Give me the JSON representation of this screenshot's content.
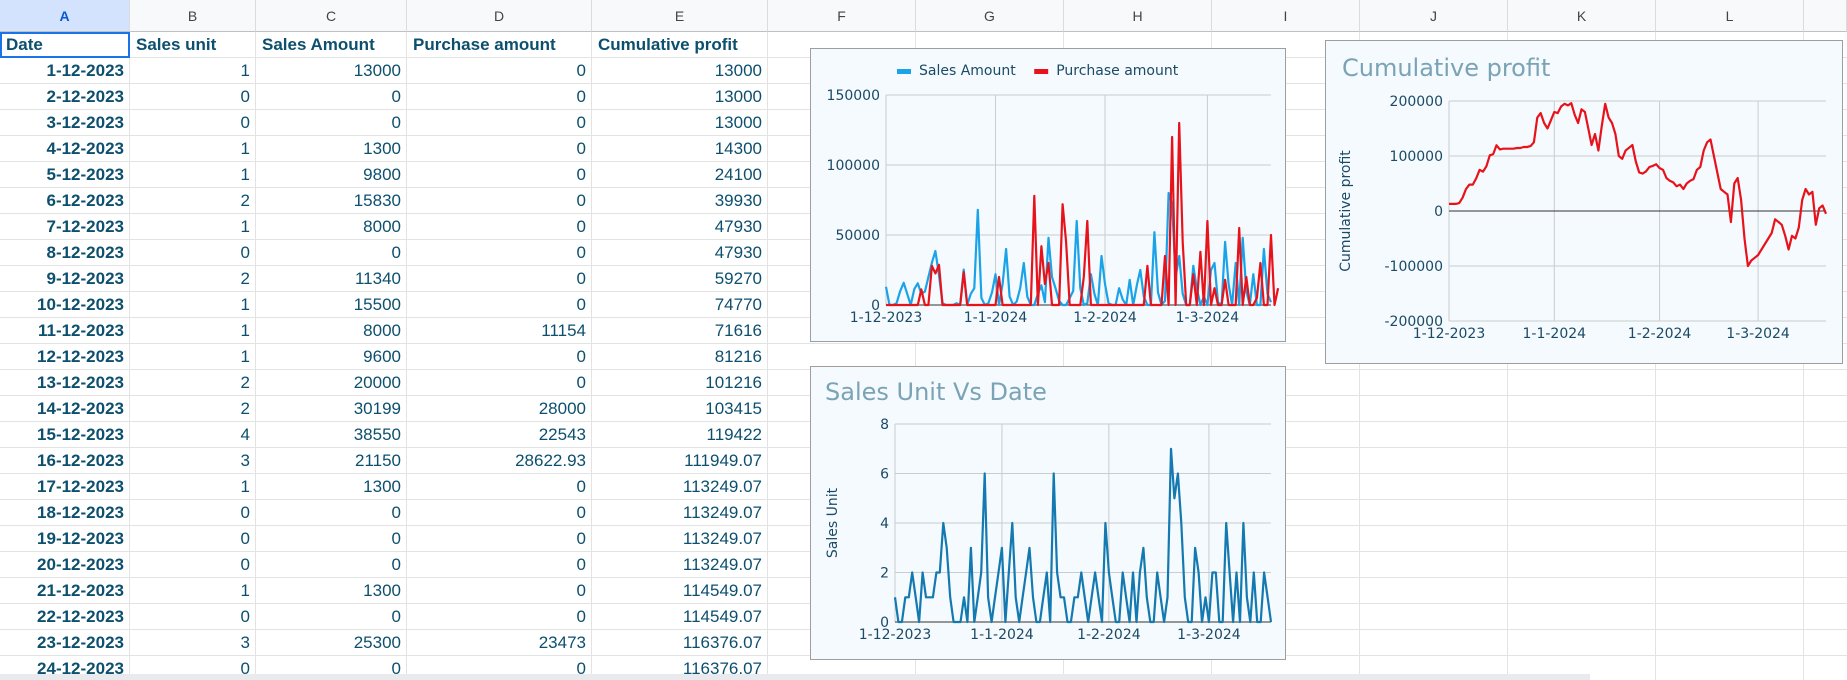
{
  "columns": [
    "A",
    "B",
    "C",
    "D",
    "E",
    "F",
    "G",
    "H",
    "I",
    "J",
    "K",
    "L"
  ],
  "selected_column": "A",
  "headers": [
    "Date",
    "Sales unit",
    "Sales Amount",
    "Purchase amount",
    "Cumulative profit"
  ],
  "rows": [
    [
      "1-12-2023",
      "1",
      "13000",
      "0",
      "13000"
    ],
    [
      "2-12-2023",
      "0",
      "0",
      "0",
      "13000"
    ],
    [
      "3-12-2023",
      "0",
      "0",
      "0",
      "13000"
    ],
    [
      "4-12-2023",
      "1",
      "1300",
      "0",
      "14300"
    ],
    [
      "5-12-2023",
      "1",
      "9800",
      "0",
      "24100"
    ],
    [
      "6-12-2023",
      "2",
      "15830",
      "0",
      "39930"
    ],
    [
      "7-12-2023",
      "1",
      "8000",
      "0",
      "47930"
    ],
    [
      "8-12-2023",
      "0",
      "0",
      "0",
      "47930"
    ],
    [
      "9-12-2023",
      "2",
      "11340",
      "0",
      "59270"
    ],
    [
      "10-12-2023",
      "1",
      "15500",
      "0",
      "74770"
    ],
    [
      "11-12-2023",
      "1",
      "8000",
      "11154",
      "71616"
    ],
    [
      "12-12-2023",
      "1",
      "9600",
      "0",
      "81216"
    ],
    [
      "13-12-2023",
      "2",
      "20000",
      "0",
      "101216"
    ],
    [
      "14-12-2023",
      "2",
      "30199",
      "28000",
      "103415"
    ],
    [
      "15-12-2023",
      "4",
      "38550",
      "22543",
      "119422"
    ],
    [
      "16-12-2023",
      "3",
      "21150",
      "28622.93",
      "111949.07"
    ],
    [
      "17-12-2023",
      "1",
      "1300",
      "0",
      "113249.07"
    ],
    [
      "18-12-2023",
      "0",
      "0",
      "0",
      "113249.07"
    ],
    [
      "19-12-2023",
      "0",
      "0",
      "0",
      "113249.07"
    ],
    [
      "20-12-2023",
      "0",
      "0",
      "0",
      "113249.07"
    ],
    [
      "21-12-2023",
      "1",
      "1300",
      "0",
      "114549.07"
    ],
    [
      "22-12-2023",
      "0",
      "0",
      "0",
      "114549.07"
    ],
    [
      "23-12-2023",
      "3",
      "25300",
      "23473",
      "116376.07"
    ],
    [
      "24-12-2023",
      "0",
      "0",
      "0",
      "116376.07"
    ]
  ],
  "colors": {
    "sales_amount": "#1aa3e8",
    "purchase_amount": "#e8121b",
    "cumulative_profit": "#e8121b",
    "sales_unit": "#1479b0",
    "text": "#0c4f6e",
    "chart_title": "#7aa3b6"
  },
  "chart_data": [
    {
      "type": "line",
      "title": "",
      "legend_position": "top",
      "x_ticks": [
        "1-12-2023",
        "1-1-2024",
        "1-2-2024",
        "1-3-2024"
      ],
      "ylim": [
        0,
        150000
      ],
      "y_ticks": [
        "0",
        "50000",
        "100000",
        "150000"
      ],
      "grid": true,
      "series": [
        {
          "name": "Sales Amount",
          "values": [
            13000,
            0,
            0,
            1300,
            9800,
            15830,
            8000,
            0,
            11340,
            15500,
            8000,
            9600,
            20000,
            30199,
            38550,
            21150,
            1300,
            0,
            0,
            0,
            1300,
            0,
            25300,
            0,
            8000,
            12000,
            68000,
            5000,
            0,
            1300,
            9000,
            22000,
            0,
            15000,
            40000,
            6000,
            0,
            2500,
            12000,
            30000,
            6000,
            0,
            0,
            8000,
            14000,
            2000,
            48000,
            20000,
            12000,
            3000,
            0,
            0,
            5000,
            10000,
            60000,
            12000,
            0,
            1300,
            22000,
            8000,
            0,
            35000,
            15000,
            1300,
            0,
            0,
            12000,
            4000,
            0,
            18000,
            0,
            14000,
            25000,
            6000,
            0,
            0,
            52000,
            9000,
            0,
            3000,
            80000,
            72000,
            20000,
            35000,
            8000,
            0,
            0,
            28000,
            12000,
            0,
            6000,
            0,
            25000,
            30000,
            2000,
            0,
            45000,
            15000,
            0,
            30000,
            0,
            48000,
            10000,
            0,
            22000,
            0,
            0,
            40000,
            8000,
            2000
          ]
        },
        {
          "name": "Purchase amount",
          "values": [
            0,
            0,
            0,
            0,
            0,
            0,
            0,
            0,
            0,
            0,
            11154,
            0,
            0,
            28000,
            22543,
            28622.93,
            0,
            0,
            0,
            0,
            0,
            0,
            23473,
            0,
            0,
            0,
            0,
            0,
            0,
            0,
            0,
            0,
            20000,
            0,
            0,
            0,
            0,
            0,
            0,
            0,
            0,
            0,
            78000,
            0,
            42000,
            15000,
            30000,
            0,
            0,
            0,
            72000,
            45000,
            0,
            0,
            0,
            0,
            20000,
            60000,
            0,
            0,
            0,
            0,
            0,
            0,
            0,
            0,
            0,
            0,
            0,
            0,
            0,
            0,
            0,
            0,
            28000,
            0,
            0,
            0,
            0,
            35000,
            0,
            120000,
            0,
            130000,
            45000,
            0,
            0,
            22000,
            0,
            38000,
            0,
            60000,
            0,
            12000,
            0,
            0,
            18000,
            0,
            0,
            0,
            55000,
            0,
            20000,
            0,
            0,
            5000,
            30000,
            0,
            0,
            50000,
            0,
            12000
          ]
        }
      ]
    },
    {
      "type": "line",
      "title": "Cumulative profit",
      "ylabel": "Cumulative profit",
      "x_ticks": [
        "1-12-2023",
        "1-1-2024",
        "1-2-2024",
        "1-3-2024"
      ],
      "ylim": [
        -200000,
        200000
      ],
      "y_ticks": [
        "200000",
        "100000",
        "0",
        "-100000",
        "-200000"
      ],
      "grid": true,
      "series": [
        {
          "name": "Cumulative profit",
          "values": [
            13000,
            13000,
            13000,
            14300,
            24100,
            39930,
            47930,
            47930,
            59270,
            74770,
            71616,
            81216,
            101216,
            103415,
            119422,
            111949,
            113249,
            113249,
            113249,
            113249,
            114549,
            114549,
            116376,
            116376,
            118000,
            125000,
            170000,
            178000,
            160000,
            150000,
            165000,
            180000,
            178000,
            190000,
            195000,
            192000,
            196000,
            175000,
            160000,
            185000,
            180000,
            150000,
            120000,
            140000,
            110000,
            155000,
            195000,
            170000,
            160000,
            140000,
            100000,
            95000,
            110000,
            115000,
            120000,
            90000,
            70000,
            68000,
            72000,
            80000,
            82000,
            85000,
            78000,
            75000,
            60000,
            55000,
            52000,
            45000,
            48000,
            40000,
            50000,
            55000,
            58000,
            75000,
            80000,
            110000,
            125000,
            130000,
            100000,
            70000,
            40000,
            35000,
            30000,
            -20000,
            50000,
            60000,
            20000,
            -50000,
            -100000,
            -90000,
            -85000,
            -80000,
            -70000,
            -60000,
            -50000,
            -40000,
            -15000,
            -20000,
            -25000,
            -45000,
            -70000,
            -45000,
            -50000,
            -30000,
            20000,
            40000,
            30000,
            35000,
            -25000,
            5000,
            10000,
            -5000
          ]
        }
      ]
    },
    {
      "type": "line",
      "title": "Sales Unit Vs Date",
      "ylabel": "Sales Unit",
      "x_ticks": [
        "1-12-2023",
        "1-1-2024",
        "1-2-2024",
        "1-3-2024"
      ],
      "ylim": [
        0,
        8
      ],
      "y_ticks": [
        "8",
        "6",
        "4",
        "2",
        "0"
      ],
      "grid": true,
      "series": [
        {
          "name": "Sales Unit",
          "values": [
            1,
            0,
            0,
            1,
            1,
            2,
            1,
            0,
            2,
            1,
            1,
            1,
            2,
            2,
            4,
            3,
            1,
            0,
            0,
            0,
            1,
            0,
            3,
            0,
            1,
            2,
            6,
            1,
            0,
            1,
            2,
            3,
            0,
            2,
            4,
            1,
            0,
            1,
            2,
            3,
            1,
            0,
            0,
            1,
            2,
            0,
            6,
            2,
            1,
            1,
            0,
            0,
            1,
            1,
            2,
            1,
            0,
            1,
            2,
            1,
            0,
            4,
            2,
            1,
            0,
            0,
            2,
            1,
            0,
            2,
            0,
            2,
            3,
            1,
            0,
            0,
            2,
            1,
            0,
            1,
            7,
            5,
            6,
            4,
            1,
            0,
            0,
            3,
            2,
            0,
            1,
            0,
            2,
            2,
            0,
            0,
            4,
            2,
            0,
            2,
            0,
            4,
            1,
            0,
            2,
            0,
            0,
            2,
            1,
            0
          ]
        }
      ]
    }
  ]
}
